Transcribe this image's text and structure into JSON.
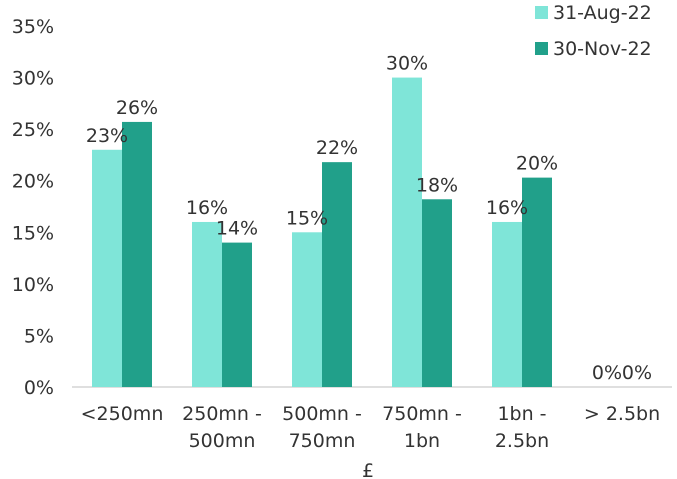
{
  "chart_data": {
    "type": "bar",
    "categories": [
      [
        "<250mn"
      ],
      [
        "250mn -",
        "500mn"
      ],
      [
        "500mn -",
        "750mn"
      ],
      [
        "750mn -",
        "1bn"
      ],
      [
        "1bn -",
        "2.5bn"
      ],
      [
        "> 2.5bn"
      ]
    ],
    "series": [
      {
        "name": "31-Aug-22",
        "color": "#7fe5d8",
        "values": [
          23,
          16,
          15,
          30,
          16,
          0
        ],
        "labels": [
          "23%",
          "16%",
          "15%",
          "30%",
          "16%",
          "0%"
        ]
      },
      {
        "name": "30-Nov-22",
        "color": "#21a08a",
        "values": [
          25.7,
          14,
          21.8,
          18.2,
          20.3,
          0
        ],
        "labels": [
          "26%",
          "14%",
          "22%",
          "18%",
          "20%",
          "0%"
        ]
      }
    ],
    "yticks": [
      "0%",
      "5%",
      "10%",
      "15%",
      "20%",
      "25%",
      "30%",
      "35%"
    ],
    "ylim": [
      0,
      35
    ],
    "xlabel": "£",
    "grid": false,
    "legend": "top-right"
  }
}
